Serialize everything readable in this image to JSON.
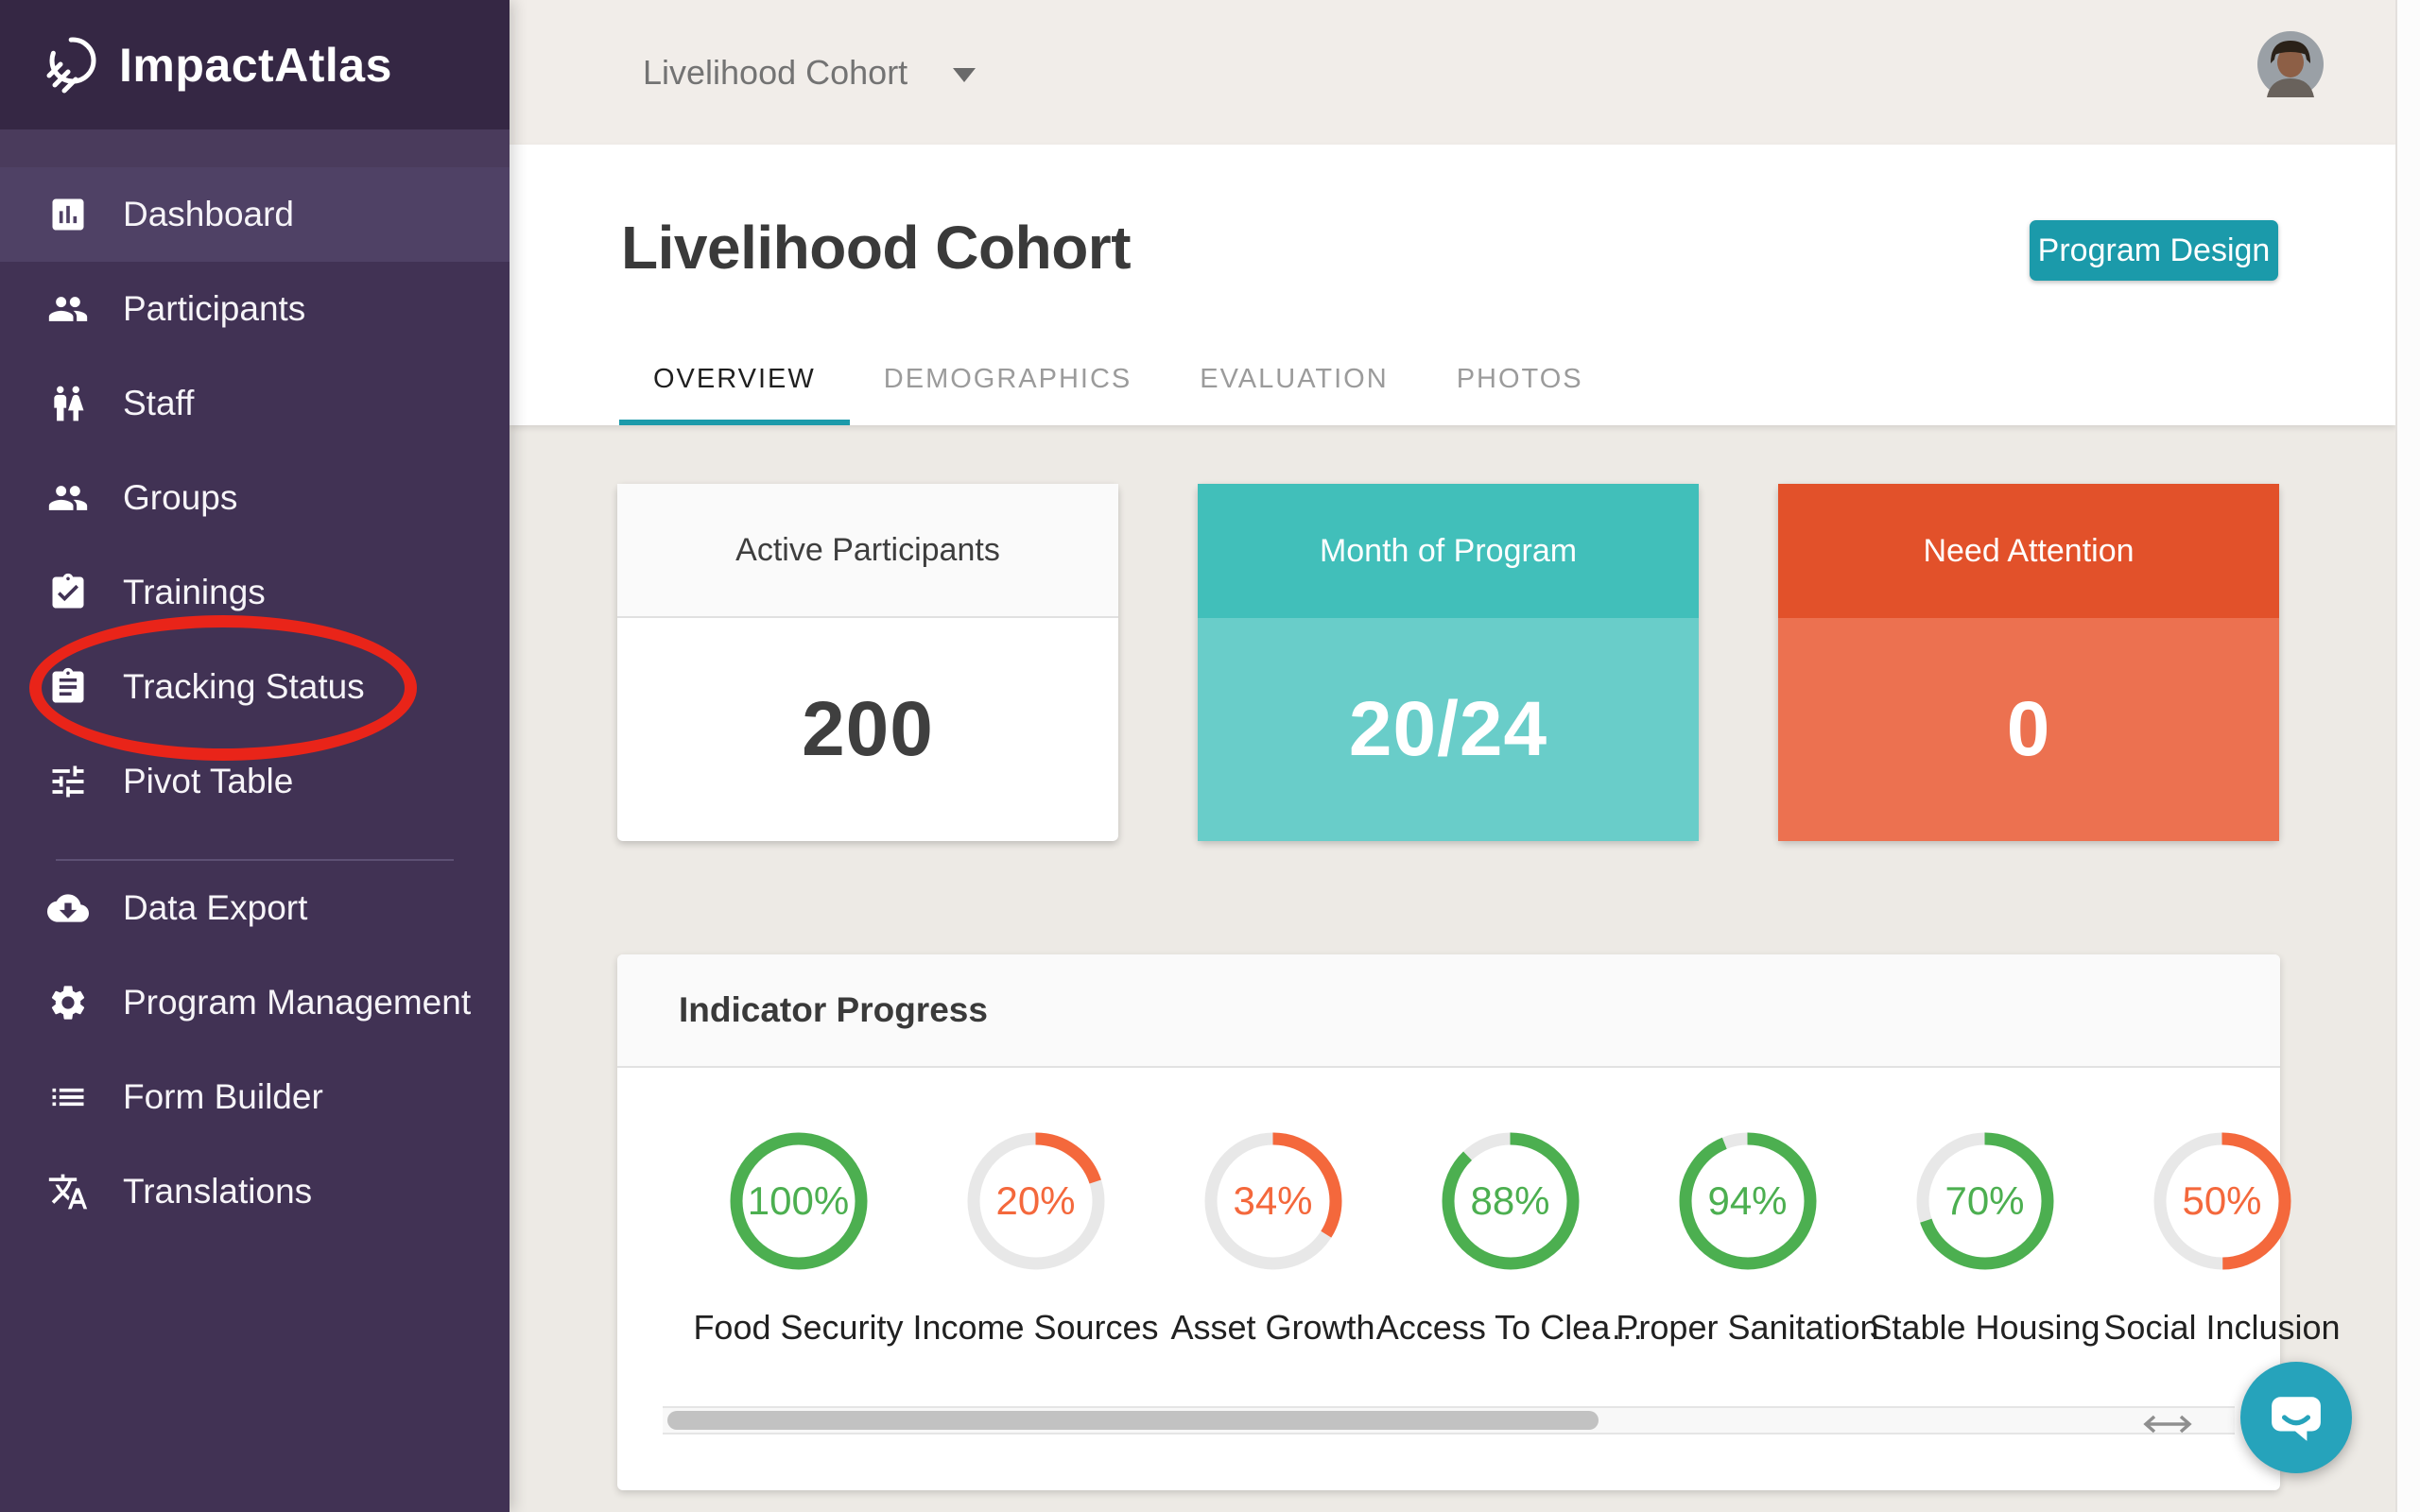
{
  "app": {
    "name": "ImpactAtlas"
  },
  "topbar": {
    "cohort_selector": {
      "value": "Livelihood Cohort"
    }
  },
  "sidebar": {
    "primary_items": [
      {
        "label": "Dashboard",
        "icon": "bar-chart-icon",
        "active": true
      },
      {
        "label": "Participants",
        "icon": "people-icon",
        "active": false
      },
      {
        "label": "Staff",
        "icon": "staff-icon",
        "active": false
      },
      {
        "label": "Groups",
        "icon": "people-icon",
        "active": false
      },
      {
        "label": "Trainings",
        "icon": "clipboard-check-icon",
        "active": false
      },
      {
        "label": "Tracking Status",
        "icon": "clipboard-icon",
        "active": false,
        "annotated": true
      },
      {
        "label": "Pivot Table",
        "icon": "sliders-icon",
        "active": false
      }
    ],
    "secondary_items": [
      {
        "label": "Data Export",
        "icon": "cloud-download-icon"
      },
      {
        "label": "Program Management",
        "icon": "gear-icon"
      },
      {
        "label": "Form Builder",
        "icon": "list-icon"
      },
      {
        "label": "Translations",
        "icon": "translate-icon"
      }
    ]
  },
  "page": {
    "title": "Livelihood Cohort",
    "program_design_label": "Program Design",
    "tabs": [
      {
        "label": "OVERVIEW",
        "active": true
      },
      {
        "label": "DEMOGRAPHICS",
        "active": false
      },
      {
        "label": "EVALUATION",
        "active": false
      },
      {
        "label": "PHOTOS",
        "active": false
      }
    ]
  },
  "stats": [
    {
      "title": "Active Participants",
      "value": "200",
      "variant": "white"
    },
    {
      "title": "Month of Program",
      "value": "20/24",
      "variant": "teal"
    },
    {
      "title": "Need Attention",
      "value": "0",
      "variant": "orange"
    }
  ],
  "indicator": {
    "title": "Indicator Progress",
    "items": [
      {
        "label": "Food Security",
        "percent": 100,
        "color": "#4caf50"
      },
      {
        "label": "Income Sources",
        "percent": 20,
        "color": "#f4683c"
      },
      {
        "label": "Asset Growth",
        "percent": 34,
        "color": "#f4683c"
      },
      {
        "label": "Access To Clea…",
        "percent": 88,
        "color": "#4caf50"
      },
      {
        "label": "Proper Sanitation",
        "percent": 94,
        "color": "#4caf50"
      },
      {
        "label": "Stable Housing",
        "percent": 70,
        "color": "#4caf50"
      },
      {
        "label": "Social Inclusion",
        "percent": 50,
        "color": "#f4683c"
      }
    ]
  },
  "annotation": {
    "shape": "ellipse",
    "color": "#e92419",
    "target": "Tracking Status"
  },
  "colors": {
    "sidebar_bg": "#413254",
    "sidebar_logo_bg": "#352744",
    "sidebar_active_row": "#4f4165",
    "accent_teal": "#1b9aaa",
    "card_teal_header": "#41bfba",
    "card_teal_body": "#69cdc9",
    "card_orange_header": "#e2512a",
    "card_orange_body": "#ec7150",
    "progress_green": "#4caf50",
    "progress_orange": "#f4683c",
    "progress_track": "#e8e8e8",
    "chat_fab": "#26a3bb",
    "topbar_bg": "#f1ede9",
    "page_bg": "#edeae5"
  }
}
